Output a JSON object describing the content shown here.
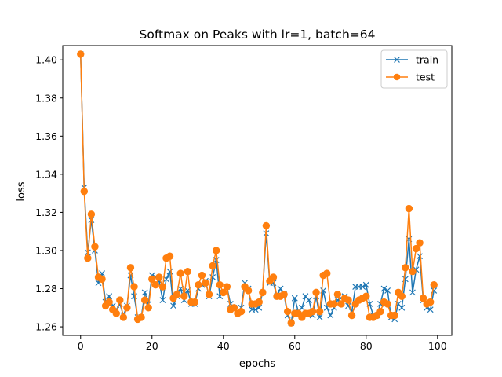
{
  "chart_data": {
    "type": "line",
    "title": "Softmax on Peaks with lr=1, batch=64",
    "xlabel": "epochs",
    "ylabel": "loss",
    "xlim": [
      -5,
      104
    ],
    "ylim": [
      1.2555,
      1.4075
    ],
    "xticks": [
      0,
      20,
      40,
      60,
      80,
      100
    ],
    "yticks": [
      1.26,
      1.28,
      1.3,
      1.32,
      1.34,
      1.36,
      1.38,
      1.4
    ],
    "ytick_labels": [
      "1.26",
      "1.28",
      "1.30",
      "1.32",
      "1.34",
      "1.36",
      "1.38",
      "1.40"
    ],
    "grid": false,
    "legend_position": "top-right",
    "series": [
      {
        "name": "train",
        "color": "#1f77b4",
        "marker": "x",
        "x": [
          0,
          1,
          2,
          3,
          4,
          5,
          6,
          7,
          8,
          9,
          10,
          11,
          12,
          13,
          14,
          15,
          16,
          17,
          18,
          19,
          20,
          21,
          22,
          23,
          24,
          25,
          26,
          27,
          28,
          29,
          30,
          31,
          32,
          33,
          34,
          35,
          36,
          37,
          38,
          39,
          40,
          41,
          42,
          43,
          44,
          45,
          46,
          47,
          48,
          49,
          50,
          51,
          52,
          53,
          54,
          55,
          56,
          57,
          58,
          59,
          60,
          61,
          62,
          63,
          64,
          65,
          66,
          67,
          68,
          69,
          70,
          71,
          72,
          73,
          74,
          75,
          76,
          77,
          78,
          79,
          80,
          81,
          82,
          83,
          84,
          85,
          86,
          87,
          88,
          89,
          90,
          91,
          92,
          93,
          94,
          95,
          96,
          97,
          98,
          99
        ],
        "values": [
          1.403,
          1.333,
          1.299,
          1.316,
          1.3,
          1.283,
          1.288,
          1.273,
          1.276,
          1.271,
          1.269,
          1.272,
          1.266,
          1.271,
          1.287,
          1.276,
          1.265,
          1.265,
          1.278,
          1.272,
          1.287,
          1.286,
          1.284,
          1.274,
          1.285,
          1.289,
          1.271,
          1.276,
          1.28,
          1.274,
          1.279,
          1.272,
          1.272,
          1.28,
          1.282,
          1.284,
          1.276,
          1.286,
          1.295,
          1.276,
          1.278,
          1.281,
          1.272,
          1.27,
          1.268,
          1.27,
          1.283,
          1.28,
          1.269,
          1.269,
          1.27,
          1.278,
          1.309,
          1.283,
          1.283,
          1.276,
          1.28,
          1.277,
          1.266,
          1.262,
          1.275,
          1.268,
          1.27,
          1.276,
          1.274,
          1.266,
          1.276,
          1.265,
          1.279,
          1.27,
          1.266,
          1.27,
          1.274,
          1.275,
          1.276,
          1.271,
          1.268,
          1.281,
          1.281,
          1.281,
          1.282,
          1.272,
          1.266,
          1.266,
          1.272,
          1.28,
          1.279,
          1.265,
          1.264,
          1.272,
          1.27,
          1.285,
          1.306,
          1.278,
          1.29,
          1.297,
          1.274,
          1.27,
          1.269,
          1.279
        ]
      },
      {
        "name": "test",
        "color": "#ff7f0e",
        "marker": "o",
        "x": [
          0,
          1,
          2,
          3,
          4,
          5,
          6,
          7,
          8,
          9,
          10,
          11,
          12,
          13,
          14,
          15,
          16,
          17,
          18,
          19,
          20,
          21,
          22,
          23,
          24,
          25,
          26,
          27,
          28,
          29,
          30,
          31,
          32,
          33,
          34,
          35,
          36,
          37,
          38,
          39,
          40,
          41,
          42,
          43,
          44,
          45,
          46,
          47,
          48,
          49,
          50,
          51,
          52,
          53,
          54,
          55,
          56,
          57,
          58,
          59,
          60,
          61,
          62,
          63,
          64,
          65,
          66,
          67,
          68,
          69,
          70,
          71,
          72,
          73,
          74,
          75,
          76,
          77,
          78,
          79,
          80,
          81,
          82,
          83,
          84,
          85,
          86,
          87,
          88,
          89,
          90,
          91,
          92,
          93,
          94,
          95,
          96,
          97,
          98,
          99
        ],
        "values": [
          1.403,
          1.331,
          1.296,
          1.319,
          1.302,
          1.286,
          1.285,
          1.271,
          1.273,
          1.269,
          1.267,
          1.274,
          1.265,
          1.27,
          1.291,
          1.281,
          1.264,
          1.265,
          1.274,
          1.27,
          1.285,
          1.282,
          1.286,
          1.281,
          1.296,
          1.297,
          1.275,
          1.277,
          1.288,
          1.276,
          1.289,
          1.273,
          1.273,
          1.282,
          1.287,
          1.283,
          1.277,
          1.292,
          1.3,
          1.282,
          1.278,
          1.281,
          1.269,
          1.27,
          1.267,
          1.268,
          1.281,
          1.279,
          1.272,
          1.272,
          1.273,
          1.278,
          1.313,
          1.284,
          1.286,
          1.276,
          1.276,
          1.277,
          1.268,
          1.262,
          1.267,
          1.267,
          1.265,
          1.267,
          1.267,
          1.268,
          1.278,
          1.268,
          1.287,
          1.288,
          1.272,
          1.272,
          1.277,
          1.272,
          1.275,
          1.274,
          1.266,
          1.272,
          1.274,
          1.275,
          1.276,
          1.265,
          1.265,
          1.266,
          1.268,
          1.273,
          1.272,
          1.266,
          1.266,
          1.278,
          1.276,
          1.291,
          1.322,
          1.289,
          1.301,
          1.304,
          1.275,
          1.272,
          1.273,
          1.282
        ]
      }
    ]
  }
}
